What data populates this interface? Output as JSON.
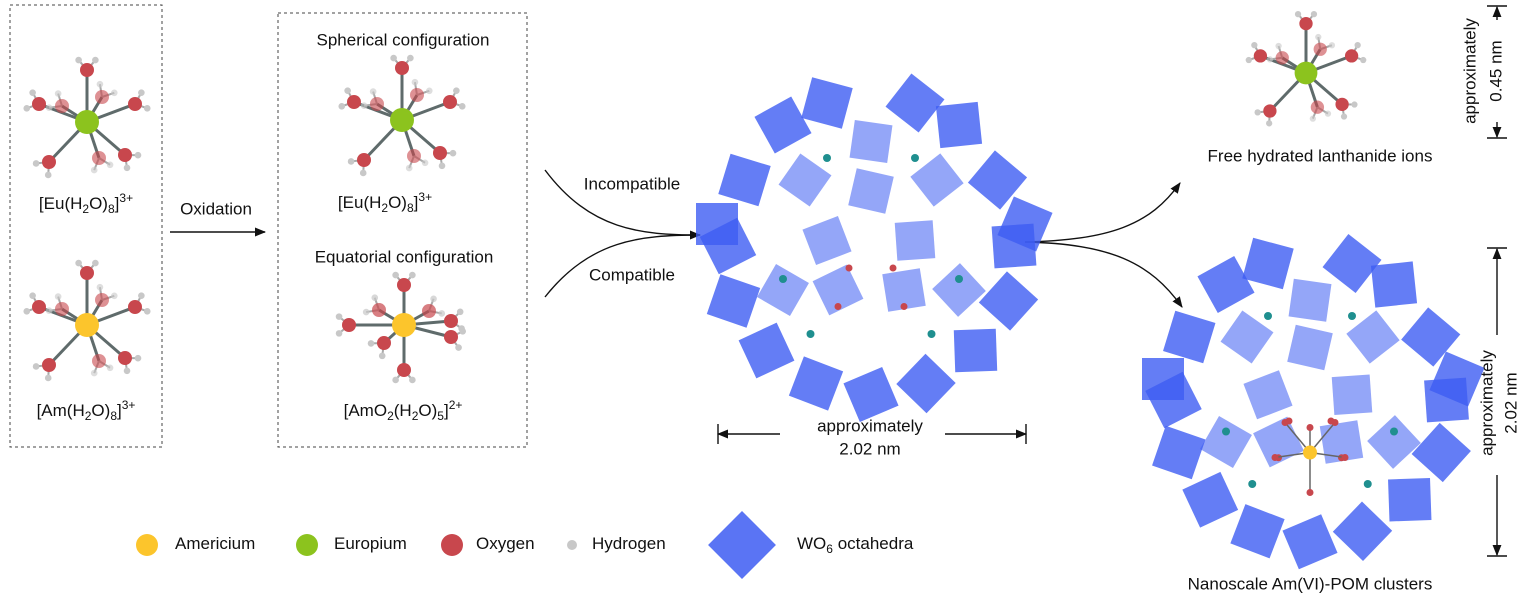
{
  "left_panel": {
    "eu_formula": [
      "[Eu(H",
      "2",
      "O)",
      "8",
      "]",
      "3+"
    ],
    "am_formula": [
      "[Am(H",
      "2",
      "O)",
      "8",
      "]",
      "3+"
    ]
  },
  "arrow_label": "Oxidation",
  "middle_panel": {
    "spherical": {
      "title": "Spherical configuration",
      "formula": [
        "[Eu(H",
        "2",
        "O)",
        "8",
        "]",
        "3+"
      ]
    },
    "equatorial": {
      "title": "Equatorial configuration",
      "formula": [
        "[AmO",
        "2",
        "(H",
        "2",
        "O)",
        "5",
        "]",
        "2+"
      ]
    }
  },
  "incompatible": "Incompatible",
  "compatible": "Compatible",
  "cluster_dimension": [
    "approximately",
    "2.02 nm"
  ],
  "free_ions": {
    "label": "Free hydrated lanthanide ions",
    "dimension": [
      "approximately",
      "0.45 nm"
    ]
  },
  "clusters": {
    "label": "Nanoscale Am(VI)-POM clusters",
    "dimension": [
      "approximately",
      "2.02 nm"
    ]
  },
  "legend": [
    {
      "label": [
        "Americium"
      ]
    },
    {
      "label": [
        "Europium"
      ]
    },
    {
      "label": [
        "Oxygen"
      ]
    },
    {
      "label": [
        "Hydrogen"
      ]
    },
    {
      "label": [
        "WO",
        "6",
        " octahedra"
      ]
    }
  ]
}
